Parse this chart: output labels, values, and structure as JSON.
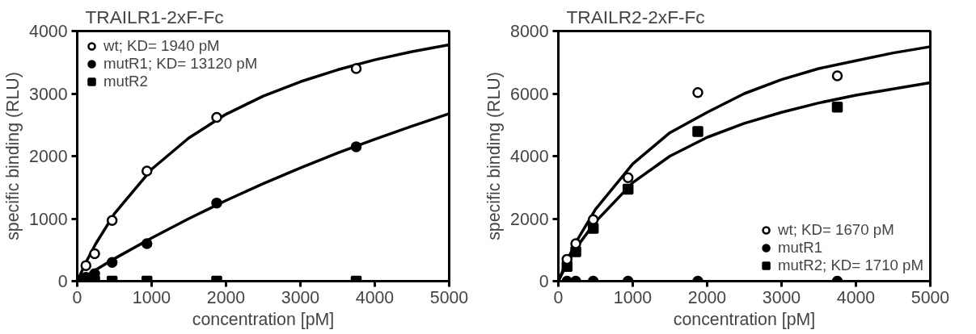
{
  "chart_data": [
    {
      "type": "scatter",
      "title": "TRAILR1-2xF-Fc",
      "xlabel": "concentration [pM]",
      "ylabel": "specific binding (RLU)",
      "xlim": [
        0,
        5000
      ],
      "ylim": [
        0,
        4000
      ],
      "xticks": [
        0,
        1000,
        2000,
        3000,
        4000,
        5000
      ],
      "yticks": [
        0,
        1000,
        2000,
        3000,
        4000
      ],
      "grid": false,
      "legend": "top left",
      "x": [
        117,
        234,
        469,
        937,
        1875,
        3750
      ],
      "series": [
        {
          "name": "wt; KD= 1940 pM",
          "color": "#ffffff",
          "marker": "circle",
          "values": [
            250,
            440,
            970,
            1760,
            2620,
            3400
          ]
        },
        {
          "name": "mutR1; KD= 13120 pM",
          "color": "#000000",
          "marker": "circle",
          "values": [
            60,
            120,
            300,
            600,
            1250,
            2150
          ]
        },
        {
          "name": "mutR2",
          "color": "#000000",
          "marker": "square",
          "values": [
            null,
            0,
            0,
            0,
            0,
            0
          ]
        },
        {
          "type": "line",
          "color": "#000000",
          "x": [
            0,
            125,
            250,
            500,
            1000,
            1500,
            2000,
            2500,
            3000,
            3500,
            4000,
            4500,
            5000
          ],
          "values": [
            0,
            320,
            600,
            1080,
            1790,
            2290,
            2670,
            2960,
            3190,
            3380,
            3540,
            3670,
            3780
          ]
        },
        {
          "type": "line",
          "color": "#000000",
          "x": [
            0,
            125,
            250,
            500,
            1000,
            1500,
            2000,
            2500,
            3000,
            3500,
            4000,
            4500,
            5000
          ],
          "values": [
            0,
            90,
            180,
            360,
            690,
            1000,
            1290,
            1560,
            1810,
            2050,
            2270,
            2480,
            2680
          ]
        }
      ]
    },
    {
      "type": "scatter",
      "title": "TRAILR2-2xF-Fc",
      "xlabel": "concentration [pM]",
      "ylabel": "specific binding (RLU)",
      "xlim": [
        0,
        5000
      ],
      "ylim": [
        0,
        8000
      ],
      "xticks": [
        0,
        1000,
        2000,
        3000,
        4000,
        5000
      ],
      "yticks": [
        0,
        2000,
        4000,
        6000,
        8000
      ],
      "grid": false,
      "legend": "bottom right",
      "x": [
        117,
        234,
        469,
        937,
        1875,
        3750
      ],
      "series": [
        {
          "name": "wt; KD= 1670 pM",
          "color": "#ffffff",
          "marker": "circle",
          "values": [
            700,
            1200,
            1970,
            3310,
            6030,
            6570
          ]
        },
        {
          "name": "mutR1",
          "color": "#000000",
          "marker": "circle",
          "values": [
            0,
            0,
            0,
            0,
            0,
            0
          ]
        },
        {
          "name": "mutR2; KD= 1710 pM",
          "color": "#000000",
          "marker": "square",
          "values": [
            470,
            940,
            1690,
            2940,
            4790,
            5570
          ]
        },
        {
          "type": "line",
          "color": "#000000",
          "x": [
            0,
            125,
            250,
            500,
            1000,
            1500,
            2000,
            2500,
            3000,
            3500,
            4000,
            4500,
            5000
          ],
          "values": [
            0,
            700,
            1300,
            2300,
            3750,
            4750,
            5400,
            6000,
            6450,
            6800,
            7050,
            7300,
            7500
          ]
        },
        {
          "type": "line",
          "color": "#000000",
          "x": [
            0,
            125,
            250,
            500,
            1000,
            1500,
            2000,
            2500,
            3000,
            3500,
            4000,
            4500,
            5000
          ],
          "values": [
            0,
            600,
            1100,
            1900,
            3150,
            4000,
            4600,
            5050,
            5400,
            5700,
            5950,
            6150,
            6350
          ]
        }
      ]
    }
  ]
}
